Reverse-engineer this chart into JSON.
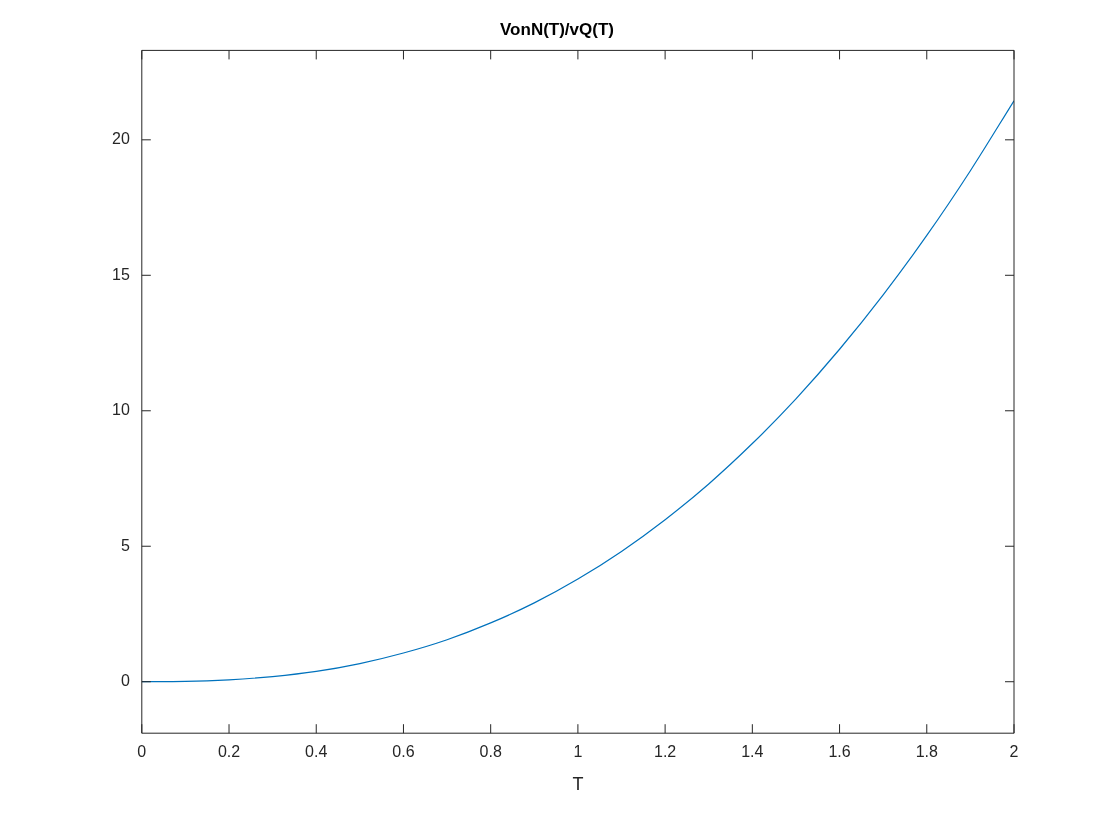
{
  "chart_data": {
    "type": "line",
    "title": "VonN(T)/vQ(T)",
    "xlabel": "T",
    "x": [
      0,
      0.1,
      0.2,
      0.3,
      0.4,
      0.5,
      0.6,
      0.7,
      0.8,
      0.9,
      1.0,
      1.1,
      1.2,
      1.3,
      1.4,
      1.5,
      1.6,
      1.7,
      1.8,
      1.9,
      2.0
    ],
    "series": [
      {
        "color": "#0072bd",
        "values": [
          0,
          0.01,
          0.07,
          0.19,
          0.38,
          0.67,
          1.06,
          1.55,
          2.17,
          2.91,
          3.79,
          4.81,
          5.98,
          7.3,
          8.79,
          10.44,
          12.27,
          14.28,
          16.47,
          18.86,
          21.44
        ]
      }
    ],
    "xlim": [
      0,
      2
    ],
    "xticks": [
      0,
      0.2,
      0.4,
      0.6,
      0.8,
      1,
      1.2,
      1.4,
      1.6,
      1.8,
      2
    ],
    "ylim": [
      -1.9,
      23.3
    ],
    "yticks": [
      0,
      5,
      10,
      15,
      20
    ],
    "grid": false,
    "legend": false,
    "marker": "none",
    "line_style": "solid"
  }
}
